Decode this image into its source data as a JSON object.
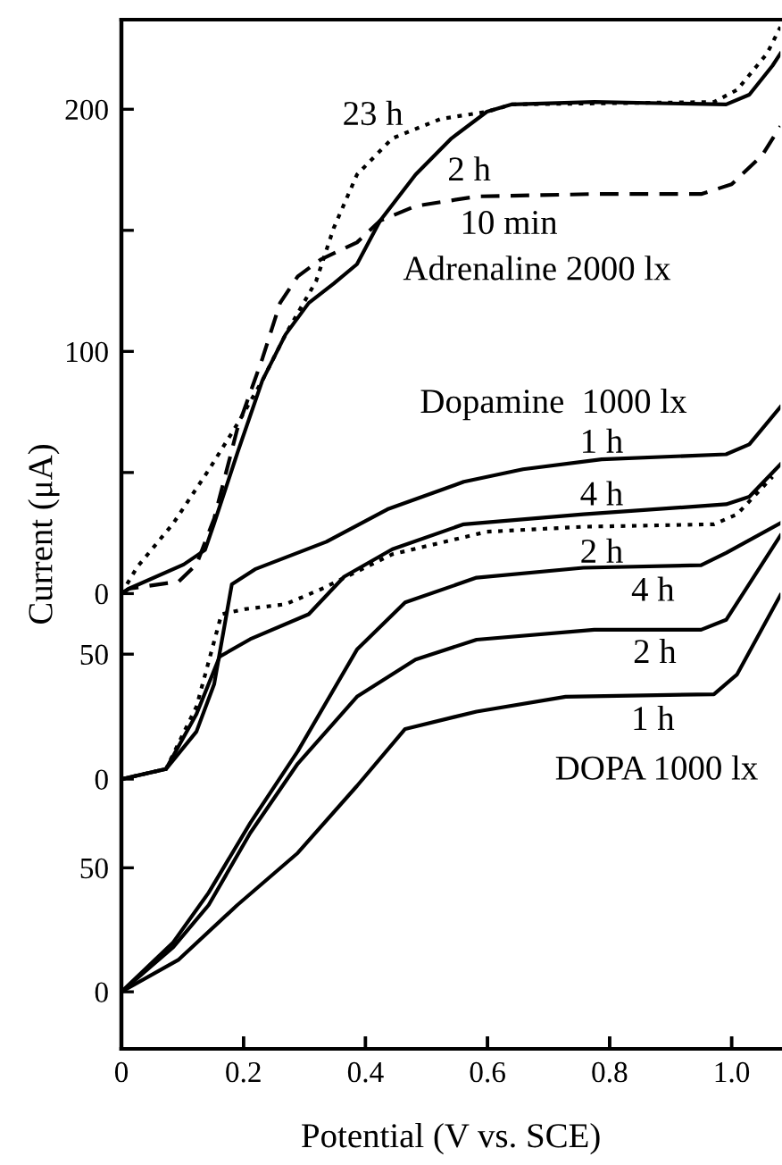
{
  "chart_data": [
    {
      "type": "line",
      "xlim": [
        0,
        1.08
      ],
      "xticks": [
        0,
        0.2,
        0.4,
        0.6,
        0.8,
        1.0
      ],
      "ylim": [
        -188,
        237
      ],
      "yticks": [
        0,
        {
          "value": 50,
          "label": null
        },
        100,
        {
          "value": 150,
          "label": null
        },
        200
      ],
      "tick_labels": "y",
      "marker": "none",
      "series": [
        {
          "name": "2 h",
          "color": "#000000",
          "line_style": "solid",
          "x": [
            0,
            0.012,
            0.102,
            0.137,
            0.152,
            0.19,
            0.231,
            0.269,
            0.307,
            0.348,
            0.386,
            0.424,
            0.482,
            0.541,
            0.599,
            0.64,
            0.775,
            0.991,
            1.029,
            1.067,
            1.08
          ],
          "values": [
            0,
            2,
            12,
            18,
            29,
            58,
            88,
            107,
            120,
            128,
            136,
            154,
            173,
            188,
            199,
            202,
            203,
            202,
            206,
            218,
            223
          ]
        },
        {
          "name": "23 h",
          "color": "#000000",
          "line_style": "dotted",
          "x": [
            0,
            0.026,
            0.085,
            0.143,
            0.19,
            0.231,
            0.269,
            0.319,
            0.348,
            0.386,
            0.444,
            0.523,
            0.599,
            0.64,
            0.971,
            1.009,
            1.058,
            1.08
          ],
          "values": [
            0,
            11,
            29,
            51,
            70,
            88,
            107,
            129,
            151,
            173,
            188,
            196,
            199,
            202,
            203,
            208,
            223,
            234
          ]
        },
        {
          "name": "10 min",
          "color": "#000000",
          "line_style": "dashed",
          "x": [
            0,
            0.012,
            0.094,
            0.123,
            0.152,
            0.19,
            0.231,
            0.26,
            0.289,
            0.327,
            0.386,
            0.424,
            0.482,
            0.582,
            0.775,
            0.95,
            1.0,
            1.05,
            1.08
          ],
          "values": [
            0,
            2,
            5,
            12,
            31,
            68,
            97,
            120,
            131,
            138,
            145,
            154,
            160,
            164,
            165,
            165,
            169,
            181,
            193
          ]
        }
      ],
      "annotations": [
        "Adrenaline 2000 lx"
      ]
    },
    {
      "type": "line",
      "xlim": [
        0,
        1.08
      ],
      "xticks": [
        0,
        0.2,
        0.4,
        0.6,
        0.8,
        1.0
      ],
      "ylim": [
        -108,
        304
      ],
      "yticks": [
        0,
        50
      ],
      "tick_labels": "y",
      "marker": "none",
      "series": [
        {
          "name": "1 h",
          "color": "#000000",
          "line_style": "solid",
          "x": [
            0,
            0.073,
            0.123,
            0.152,
            0.181,
            0.219,
            0.336,
            0.436,
            0.561,
            0.658,
            0.787,
            0.991,
            1.029,
            1.08
          ],
          "values": [
            0,
            4,
            19,
            38,
            78,
            84,
            95,
            108,
            119,
            124,
            128,
            130,
            134,
            149
          ]
        },
        {
          "name": "4 h",
          "color": "#000000",
          "line_style": "solid",
          "x": [
            0,
            0.073,
            0.123,
            0.161,
            0.211,
            0.307,
            0.365,
            0.444,
            0.561,
            0.757,
            0.991,
            1.029,
            1.08
          ],
          "values": [
            0,
            4,
            26,
            49,
            56,
            66,
            81,
            92,
            102,
            106,
            110,
            113,
            126
          ]
        },
        {
          "name": "2 h",
          "color": "#000000",
          "line_style": "dotted",
          "x": [
            0,
            0.073,
            0.123,
            0.143,
            0.164,
            0.202,
            0.269,
            0.327,
            0.444,
            0.599,
            0.757,
            0.971,
            1.009,
            1.067
          ],
          "values": [
            0,
            4,
            29,
            47,
            66,
            68,
            70,
            76,
            90,
            99,
            101,
            102,
            106,
            121
          ]
        }
      ],
      "annotations": [
        "Dopamine  1000 lx"
      ]
    },
    {
      "type": "line",
      "xlim": [
        0,
        1.08
      ],
      "xticks": [
        0,
        0.2,
        0.4,
        0.6,
        0.8,
        {
          "value": 1,
          "label": "1.0"
        }
      ],
      "ylim": [
        -23,
        392
      ],
      "yticks": [
        0,
        50
      ],
      "marker": "none",
      "xlabel": "Potential (V vs. SCE)",
      "ylabel": "Current (μA)",
      "series": [
        {
          "name": "4 h",
          "color": "#000000",
          "line_style": "solid",
          "x": [
            0,
            0.085,
            0.143,
            0.211,
            0.289,
            0.386,
            0.465,
            0.582,
            0.757,
            0.95,
            0.991,
            1.08
          ],
          "values": [
            0,
            20,
            40,
            68,
            97,
            138,
            157,
            167,
            171,
            172,
            177,
            189
          ]
        },
        {
          "name": "2 h",
          "color": "#000000",
          "line_style": "solid",
          "x": [
            0,
            0.085,
            0.143,
            0.211,
            0.289,
            0.386,
            0.482,
            0.582,
            0.775,
            0.95,
            0.991,
            1.08
          ],
          "values": [
            0,
            18,
            35,
            64,
            92,
            119,
            134,
            142,
            146,
            146,
            150,
            184
          ]
        },
        {
          "name": "1 h",
          "color": "#000000",
          "line_style": "solid",
          "x": [
            0,
            0.094,
            0.19,
            0.289,
            0.386,
            0.465,
            0.582,
            0.728,
            0.971,
            1.009,
            1.08
          ],
          "values": [
            0,
            13,
            35,
            56,
            83,
            106,
            113,
            119,
            120,
            128,
            160
          ]
        }
      ],
      "annotations": [
        "DOPA 1000 lx"
      ]
    }
  ]
}
